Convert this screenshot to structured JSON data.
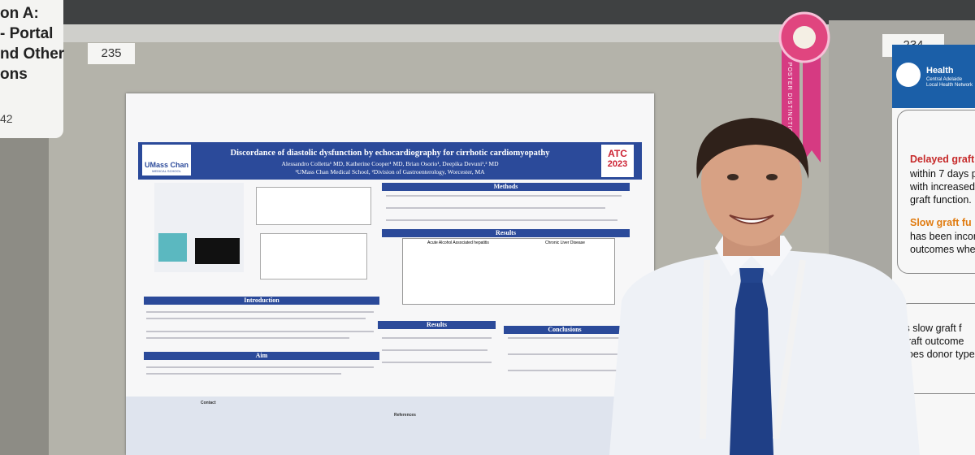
{
  "left_sign": {
    "lines": [
      "on A:",
      "- Portal",
      "nd Other",
      "ons"
    ],
    "number": "42"
  },
  "board_numbers": [
    "235",
    "234"
  ],
  "poster": {
    "logo": {
      "name": "UMass Chan",
      "sub": "MEDICAL SCHOOL"
    },
    "title": "Discordance of diastolic dysfunction by echocardiography for cirrhotic cardiomyopathy",
    "authors": "Alessandro Colletta¹ MD, Katherine Cooper¹ MD, Brian Osorio¹, Deepika Devuni¹,² MD",
    "affiliations": "¹UMass Chan Medical School, ²Division of Gastroenterology, Worcester, MA",
    "badge": {
      "name": "ATC",
      "year": "2023"
    },
    "sections": [
      "Methods",
      "Results",
      "Introduction",
      "Aim",
      "Results",
      "Conclusions"
    ],
    "table_headers": [
      "Acute Alcohol Associated hepatitis",
      "Chronic Liver Disease"
    ],
    "contact": "Contact",
    "references": "References"
  },
  "ribbon": "POSTER DISTINCTION",
  "right_poster": {
    "brand": "Health",
    "brand_sub": "Central Adelaide Local Health Network",
    "lines": [
      "Delayed graft",
      "within 7 days p",
      "with increased",
      "graft function.",
      "Slow graft fu",
      "has been incon",
      "outcomes whe",
      "Is slow graft f",
      "graft outcome",
      "does donor type"
    ]
  }
}
